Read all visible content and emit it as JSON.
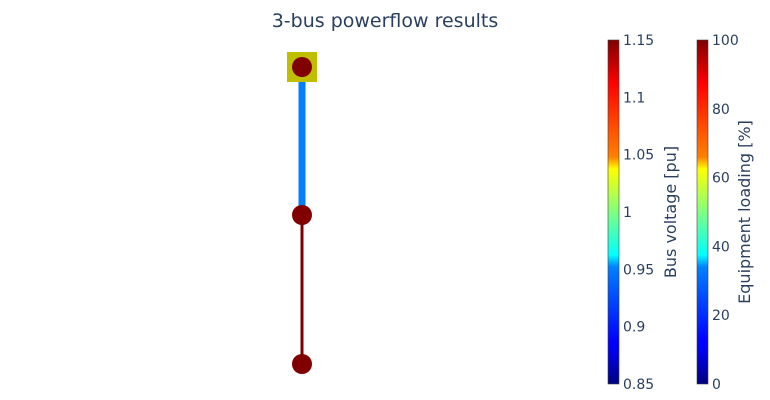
{
  "title": "3-bus powerflow results",
  "network": {
    "buses": [
      {
        "id": "bus-1",
        "type": "ext_grid",
        "voltage_pu": 1.15,
        "color": "#800000",
        "ext_grid_color": "#bfbf00"
      },
      {
        "id": "bus-2",
        "voltage_pu": 1.15,
        "color": "#800000"
      },
      {
        "id": "bus-3",
        "voltage_pu": 1.15,
        "color": "#800000"
      }
    ],
    "branches": [
      {
        "id": "branch-1-2",
        "from": "bus-1",
        "to": "bus-2",
        "loading_percent": 30,
        "color": "#0080ff",
        "style": "thick"
      },
      {
        "id": "branch-2-3",
        "from": "bus-2",
        "to": "bus-3",
        "loading_percent": 100,
        "color": "#800000",
        "style": "thin"
      }
    ]
  },
  "colorbars": {
    "voltage": {
      "title": "Bus voltage [pu]",
      "range": [
        0.85,
        1.15
      ],
      "ticks": [
        "0.85",
        "0.9",
        "0.95",
        "1",
        "1.05",
        "1.1",
        "1.15"
      ],
      "tick_values": [
        0.85,
        0.9,
        0.95,
        1.0,
        1.05,
        1.1,
        1.15
      ],
      "colorscale": "jet"
    },
    "loading": {
      "title": "Equipment loading [%]",
      "range": [
        0,
        100
      ],
      "ticks": [
        "0",
        "20",
        "40",
        "60",
        "80",
        "100"
      ],
      "tick_values": [
        0,
        20,
        40,
        60,
        80,
        100
      ],
      "colorscale": "jet"
    }
  }
}
